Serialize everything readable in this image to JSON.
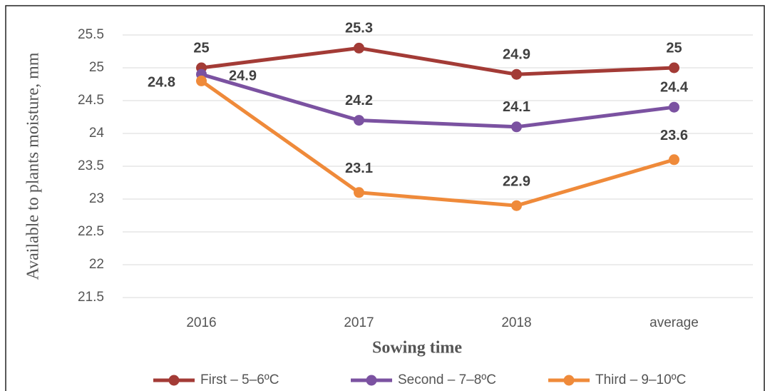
{
  "chart_data": {
    "type": "line",
    "y_label": "Available to plants moisture, mm",
    "x_label": "Sowing time",
    "categories": [
      "2016",
      "2017",
      "2018",
      "average"
    ],
    "series": [
      {
        "name": "First – 5–6ºC",
        "color": "#a33b36",
        "values": [
          25,
          25.3,
          24.9,
          25
        ]
      },
      {
        "name": "Second – 7–8ºC",
        "color": "#7b52a1",
        "values": [
          24.9,
          24.2,
          24.1,
          24.4
        ]
      },
      {
        "name": "Third – 9–10ºC",
        "color": "#ef8a3a",
        "values": [
          24.8,
          23.1,
          22.9,
          23.6
        ]
      }
    ],
    "ylim": [
      21.5,
      25.5
    ],
    "yticks": [
      21.5,
      22,
      22.5,
      23,
      23.5,
      24,
      24.5,
      25,
      25.5
    ],
    "grid": true,
    "legend": "bottom"
  }
}
